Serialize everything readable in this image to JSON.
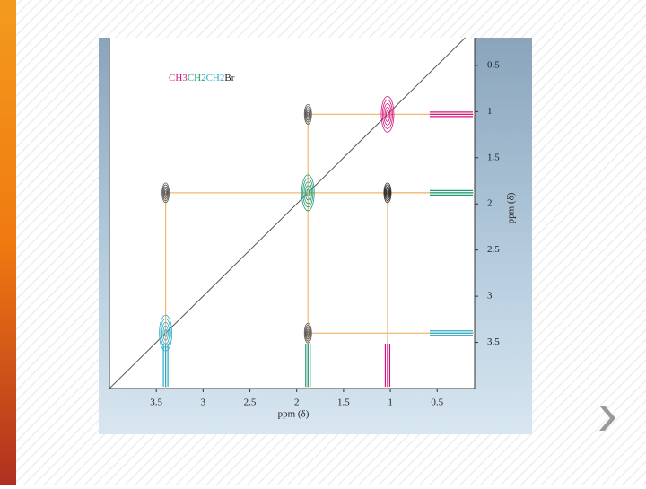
{
  "chart_data": {
    "type": "cosy",
    "formula": [
      "C",
      "H3",
      "CH2",
      "CH2",
      "Br"
    ],
    "x_label": "ppm (δ)",
    "y_label": "ppm (δ)",
    "xlim": [
      4.0,
      0.1
    ],
    "ylim": [
      0.2,
      4.0
    ],
    "xticks": [
      3.5,
      3.0,
      2.5,
      2.0,
      1.5,
      1.0,
      0.5
    ],
    "yticks": [
      0.5,
      1.0,
      1.5,
      2.0,
      2.5,
      3.0,
      3.5
    ],
    "peaks": [
      {
        "x": 1.03,
        "y": 1.03,
        "color": "#d4147c"
      },
      {
        "x": 1.88,
        "y": 1.88,
        "color": "#1a9a7a"
      },
      {
        "x": 3.4,
        "y": 3.4,
        "color": "#2aa8c8"
      },
      {
        "x": 1.88,
        "y": 1.03,
        "color": "#555555"
      },
      {
        "x": 3.4,
        "y": 1.88,
        "color": "#555555"
      },
      {
        "x": 1.03,
        "y": 1.88,
        "color": "#222222"
      },
      {
        "x": 1.88,
        "y": 3.4,
        "color": "#555555"
      }
    ]
  }
}
